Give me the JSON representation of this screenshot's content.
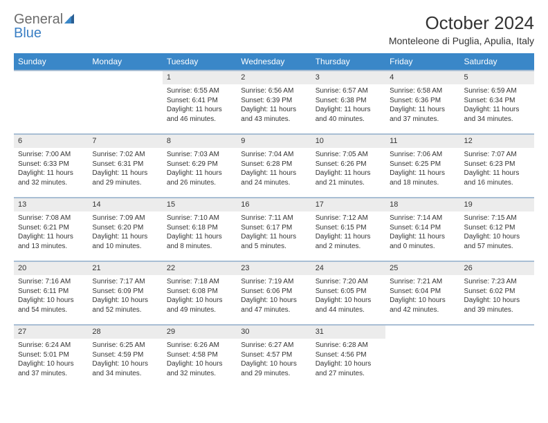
{
  "logo": {
    "word1": "General",
    "word2": "Blue"
  },
  "title": "October 2024",
  "subtitle": "Monteleone di Puglia, Apulia, Italy",
  "colors": {
    "header_bg": "#3a87c8",
    "header_text": "#ffffff",
    "daynum_bg": "#ececec",
    "row_border": "#a8bed4",
    "text": "#333333",
    "logo_gray": "#6c6c6c",
    "logo_blue": "#3a7fc4",
    "page_bg": "#ffffff"
  },
  "typography": {
    "title_fontsize": 26,
    "subtitle_fontsize": 14,
    "header_fontsize": 12,
    "daynum_fontsize": 11,
    "cell_fontsize": 10
  },
  "columns": [
    "Sunday",
    "Monday",
    "Tuesday",
    "Wednesday",
    "Thursday",
    "Friday",
    "Saturday"
  ],
  "weeks": [
    [
      null,
      null,
      {
        "day": "1",
        "sunrise": "Sunrise: 6:55 AM",
        "sunset": "Sunset: 6:41 PM",
        "dl1": "Daylight: 11 hours",
        "dl2": "and 46 minutes."
      },
      {
        "day": "2",
        "sunrise": "Sunrise: 6:56 AM",
        "sunset": "Sunset: 6:39 PM",
        "dl1": "Daylight: 11 hours",
        "dl2": "and 43 minutes."
      },
      {
        "day": "3",
        "sunrise": "Sunrise: 6:57 AM",
        "sunset": "Sunset: 6:38 PM",
        "dl1": "Daylight: 11 hours",
        "dl2": "and 40 minutes."
      },
      {
        "day": "4",
        "sunrise": "Sunrise: 6:58 AM",
        "sunset": "Sunset: 6:36 PM",
        "dl1": "Daylight: 11 hours",
        "dl2": "and 37 minutes."
      },
      {
        "day": "5",
        "sunrise": "Sunrise: 6:59 AM",
        "sunset": "Sunset: 6:34 PM",
        "dl1": "Daylight: 11 hours",
        "dl2": "and 34 minutes."
      }
    ],
    [
      {
        "day": "6",
        "sunrise": "Sunrise: 7:00 AM",
        "sunset": "Sunset: 6:33 PM",
        "dl1": "Daylight: 11 hours",
        "dl2": "and 32 minutes."
      },
      {
        "day": "7",
        "sunrise": "Sunrise: 7:02 AM",
        "sunset": "Sunset: 6:31 PM",
        "dl1": "Daylight: 11 hours",
        "dl2": "and 29 minutes."
      },
      {
        "day": "8",
        "sunrise": "Sunrise: 7:03 AM",
        "sunset": "Sunset: 6:29 PM",
        "dl1": "Daylight: 11 hours",
        "dl2": "and 26 minutes."
      },
      {
        "day": "9",
        "sunrise": "Sunrise: 7:04 AM",
        "sunset": "Sunset: 6:28 PM",
        "dl1": "Daylight: 11 hours",
        "dl2": "and 24 minutes."
      },
      {
        "day": "10",
        "sunrise": "Sunrise: 7:05 AM",
        "sunset": "Sunset: 6:26 PM",
        "dl1": "Daylight: 11 hours",
        "dl2": "and 21 minutes."
      },
      {
        "day": "11",
        "sunrise": "Sunrise: 7:06 AM",
        "sunset": "Sunset: 6:25 PM",
        "dl1": "Daylight: 11 hours",
        "dl2": "and 18 minutes."
      },
      {
        "day": "12",
        "sunrise": "Sunrise: 7:07 AM",
        "sunset": "Sunset: 6:23 PM",
        "dl1": "Daylight: 11 hours",
        "dl2": "and 16 minutes."
      }
    ],
    [
      {
        "day": "13",
        "sunrise": "Sunrise: 7:08 AM",
        "sunset": "Sunset: 6:21 PM",
        "dl1": "Daylight: 11 hours",
        "dl2": "and 13 minutes."
      },
      {
        "day": "14",
        "sunrise": "Sunrise: 7:09 AM",
        "sunset": "Sunset: 6:20 PM",
        "dl1": "Daylight: 11 hours",
        "dl2": "and 10 minutes."
      },
      {
        "day": "15",
        "sunrise": "Sunrise: 7:10 AM",
        "sunset": "Sunset: 6:18 PM",
        "dl1": "Daylight: 11 hours",
        "dl2": "and 8 minutes."
      },
      {
        "day": "16",
        "sunrise": "Sunrise: 7:11 AM",
        "sunset": "Sunset: 6:17 PM",
        "dl1": "Daylight: 11 hours",
        "dl2": "and 5 minutes."
      },
      {
        "day": "17",
        "sunrise": "Sunrise: 7:12 AM",
        "sunset": "Sunset: 6:15 PM",
        "dl1": "Daylight: 11 hours",
        "dl2": "and 2 minutes."
      },
      {
        "day": "18",
        "sunrise": "Sunrise: 7:14 AM",
        "sunset": "Sunset: 6:14 PM",
        "dl1": "Daylight: 11 hours",
        "dl2": "and 0 minutes."
      },
      {
        "day": "19",
        "sunrise": "Sunrise: 7:15 AM",
        "sunset": "Sunset: 6:12 PM",
        "dl1": "Daylight: 10 hours",
        "dl2": "and 57 minutes."
      }
    ],
    [
      {
        "day": "20",
        "sunrise": "Sunrise: 7:16 AM",
        "sunset": "Sunset: 6:11 PM",
        "dl1": "Daylight: 10 hours",
        "dl2": "and 54 minutes."
      },
      {
        "day": "21",
        "sunrise": "Sunrise: 7:17 AM",
        "sunset": "Sunset: 6:09 PM",
        "dl1": "Daylight: 10 hours",
        "dl2": "and 52 minutes."
      },
      {
        "day": "22",
        "sunrise": "Sunrise: 7:18 AM",
        "sunset": "Sunset: 6:08 PM",
        "dl1": "Daylight: 10 hours",
        "dl2": "and 49 minutes."
      },
      {
        "day": "23",
        "sunrise": "Sunrise: 7:19 AM",
        "sunset": "Sunset: 6:06 PM",
        "dl1": "Daylight: 10 hours",
        "dl2": "and 47 minutes."
      },
      {
        "day": "24",
        "sunrise": "Sunrise: 7:20 AM",
        "sunset": "Sunset: 6:05 PM",
        "dl1": "Daylight: 10 hours",
        "dl2": "and 44 minutes."
      },
      {
        "day": "25",
        "sunrise": "Sunrise: 7:21 AM",
        "sunset": "Sunset: 6:04 PM",
        "dl1": "Daylight: 10 hours",
        "dl2": "and 42 minutes."
      },
      {
        "day": "26",
        "sunrise": "Sunrise: 7:23 AM",
        "sunset": "Sunset: 6:02 PM",
        "dl1": "Daylight: 10 hours",
        "dl2": "and 39 minutes."
      }
    ],
    [
      {
        "day": "27",
        "sunrise": "Sunrise: 6:24 AM",
        "sunset": "Sunset: 5:01 PM",
        "dl1": "Daylight: 10 hours",
        "dl2": "and 37 minutes."
      },
      {
        "day": "28",
        "sunrise": "Sunrise: 6:25 AM",
        "sunset": "Sunset: 4:59 PM",
        "dl1": "Daylight: 10 hours",
        "dl2": "and 34 minutes."
      },
      {
        "day": "29",
        "sunrise": "Sunrise: 6:26 AM",
        "sunset": "Sunset: 4:58 PM",
        "dl1": "Daylight: 10 hours",
        "dl2": "and 32 minutes."
      },
      {
        "day": "30",
        "sunrise": "Sunrise: 6:27 AM",
        "sunset": "Sunset: 4:57 PM",
        "dl1": "Daylight: 10 hours",
        "dl2": "and 29 minutes."
      },
      {
        "day": "31",
        "sunrise": "Sunrise: 6:28 AM",
        "sunset": "Sunset: 4:56 PM",
        "dl1": "Daylight: 10 hours",
        "dl2": "and 27 minutes."
      },
      null,
      null
    ]
  ]
}
